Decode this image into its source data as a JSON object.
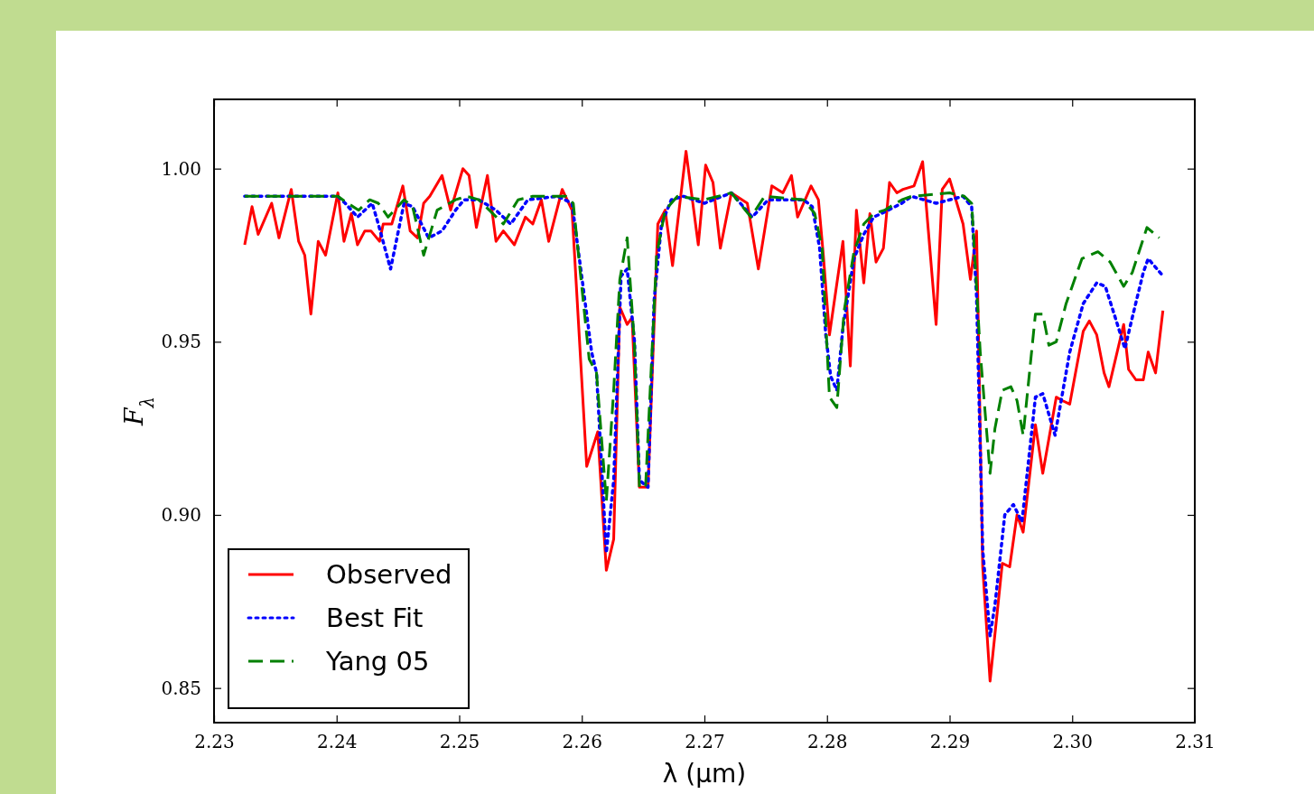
{
  "chart_data": {
    "type": "line",
    "xlabel": "λ (μm)",
    "ylabel": "F$_{λ}$",
    "xlim": [
      2.23,
      2.31
    ],
    "ylim": [
      0.84,
      1.02
    ],
    "xticks": [
      {
        "value": 2.23,
        "label": "2.23"
      },
      {
        "value": 2.24,
        "label": "2.24"
      },
      {
        "value": 2.25,
        "label": "2.25"
      },
      {
        "value": 2.26,
        "label": "2.26"
      },
      {
        "value": 2.27,
        "label": "2.27"
      },
      {
        "value": 2.28,
        "label": "2.28"
      },
      {
        "value": 2.29,
        "label": "2.29"
      },
      {
        "value": 2.3,
        "label": "2.30"
      },
      {
        "value": 2.31,
        "label": "2.31"
      }
    ],
    "yticks": [
      0.85,
      {
        "value": 0.9,
        "label": "0.90"
      },
      0.95,
      {
        "value": 1.0,
        "label": "1.00"
      }
    ],
    "grid": false,
    "legend": "bottom left",
    "marker": "none",
    "series": [
      {
        "name": "Observed",
        "color": "#ff0000",
        "line_style": "solid",
        "x": [
          2.2325,
          2.2331,
          2.2336,
          2.2347,
          2.2353,
          2.2363,
          2.2369,
          2.2374,
          2.2379,
          2.2385,
          2.2391,
          2.2401,
          2.2406,
          2.2412,
          2.2417,
          2.2423,
          2.2428,
          2.2435,
          2.2438,
          2.2445,
          2.2454,
          2.246,
          2.2466,
          2.2471,
          2.2476,
          2.2486,
          2.2493,
          2.2503,
          2.2508,
          2.2514,
          2.2523,
          2.253,
          2.2536,
          2.2545,
          2.2554,
          2.256,
          2.2567,
          2.2573,
          2.2584,
          2.2592,
          2.2604,
          2.2613,
          2.262,
          2.2626,
          2.2631,
          2.2637,
          2.2641,
          2.2647,
          2.2654,
          2.2662,
          2.2668,
          2.2674,
          2.2685,
          2.2695,
          2.2701,
          2.2707,
          2.2713,
          2.2722,
          2.2735,
          2.2744,
          2.2755,
          2.2764,
          2.2771,
          2.2776,
          2.2787,
          2.2793,
          2.2797,
          2.2802,
          2.2813,
          2.2819,
          2.2824,
          2.283,
          2.2835,
          2.284,
          2.2846,
          2.2851,
          2.2857,
          2.2862,
          2.2871,
          2.2878,
          2.2889,
          2.2894,
          2.29,
          2.2911,
          2.2917,
          2.2922,
          2.2927,
          2.2933,
          2.2943,
          2.2949,
          2.2955,
          2.296,
          2.297,
          2.2976,
          2.2987,
          2.2992,
          2.2998,
          2.3009,
          2.3014,
          2.302,
          2.3026,
          2.303,
          2.3042,
          2.3046,
          2.3052,
          2.3058,
          2.3062,
          2.3068,
          2.3074
        ],
        "values": [
          0.978,
          0.989,
          0.981,
          0.99,
          0.98,
          0.994,
          0.979,
          0.975,
          0.958,
          0.979,
          0.975,
          0.993,
          0.979,
          0.987,
          0.978,
          0.982,
          0.982,
          0.979,
          0.984,
          0.984,
          0.995,
          0.982,
          0.98,
          0.99,
          0.992,
          0.998,
          0.988,
          1.0,
          0.998,
          0.983,
          0.998,
          0.979,
          0.982,
          0.978,
          0.986,
          0.984,
          0.991,
          0.979,
          0.994,
          0.988,
          0.914,
          0.924,
          0.884,
          0.893,
          0.96,
          0.955,
          0.957,
          0.908,
          0.908,
          0.984,
          0.988,
          0.972,
          1.005,
          0.978,
          1.001,
          0.996,
          0.977,
          0.993,
          0.99,
          0.971,
          0.995,
          0.993,
          0.998,
          0.986,
          0.995,
          0.991,
          0.975,
          0.952,
          0.979,
          0.943,
          0.988,
          0.967,
          0.987,
          0.973,
          0.977,
          0.996,
          0.993,
          0.994,
          0.995,
          1.002,
          0.955,
          0.994,
          0.997,
          0.984,
          0.968,
          0.982,
          0.885,
          0.852,
          0.886,
          0.885,
          0.9,
          0.895,
          0.926,
          0.912,
          0.934,
          0.933,
          0.932,
          0.953,
          0.956,
          0.952,
          0.941,
          0.937,
          0.955,
          0.942,
          0.939,
          0.939,
          0.947,
          0.941,
          0.959
        ]
      },
      {
        "name": "Best Fit",
        "color": "#0000ff",
        "line_style": "dotted",
        "x": [
          2.2325,
          2.2401,
          2.2407,
          2.2417,
          2.2429,
          2.2434,
          2.2444,
          2.2455,
          2.2462,
          2.2475,
          2.2486,
          2.2497,
          2.2504,
          2.2516,
          2.253,
          2.2542,
          2.2556,
          2.258,
          2.2592,
          2.2601,
          2.2608,
          2.2612,
          2.262,
          2.2626,
          2.2632,
          2.2637,
          2.2643,
          2.2647,
          2.2654,
          2.2659,
          2.2665,
          2.2673,
          2.2683,
          2.27,
          2.2722,
          2.2739,
          2.2752,
          2.2781,
          2.2788,
          2.2794,
          2.2799,
          2.2803,
          2.2808,
          2.2813,
          2.2822,
          2.283,
          2.2838,
          2.285,
          2.2861,
          2.2869,
          2.2889,
          2.2911,
          2.2918,
          2.2922,
          2.2927,
          2.2933,
          2.2937,
          2.2945,
          2.2952,
          2.2959,
          2.297,
          2.2976,
          2.2986,
          2.2998,
          2.3009,
          2.302,
          2.3027,
          2.3036,
          2.3043,
          2.3049,
          2.3058,
          2.3062,
          2.3074
        ],
        "values": [
          0.992,
          0.992,
          0.99,
          0.986,
          0.99,
          0.984,
          0.971,
          0.99,
          0.989,
          0.98,
          0.982,
          0.988,
          0.991,
          0.991,
          0.988,
          0.984,
          0.991,
          0.992,
          0.99,
          0.966,
          0.947,
          0.941,
          0.889,
          0.91,
          0.969,
          0.971,
          0.95,
          0.91,
          0.908,
          0.962,
          0.984,
          0.991,
          0.992,
          0.99,
          0.993,
          0.986,
          0.991,
          0.991,
          0.989,
          0.977,
          0.952,
          0.94,
          0.936,
          0.954,
          0.974,
          0.981,
          0.986,
          0.988,
          0.99,
          0.992,
          0.99,
          0.992,
          0.989,
          0.963,
          0.89,
          0.865,
          0.874,
          0.9,
          0.903,
          0.898,
          0.934,
          0.935,
          0.923,
          0.947,
          0.961,
          0.967,
          0.966,
          0.956,
          0.948,
          0.957,
          0.97,
          0.974,
          0.969
        ]
      },
      {
        "name": "Yang 05",
        "color": "#008000",
        "line_style": "dashed",
        "x": [
          2.2325,
          2.2401,
          2.2409,
          2.2418,
          2.2427,
          2.2434,
          2.2442,
          2.2455,
          2.2462,
          2.2471,
          2.2482,
          2.2497,
          2.2506,
          2.2516,
          2.2536,
          2.2548,
          2.256,
          2.2587,
          2.2593,
          2.2606,
          2.2612,
          2.262,
          2.2626,
          2.2631,
          2.2637,
          2.2643,
          2.2647,
          2.2652,
          2.2661,
          2.2668,
          2.2678,
          2.27,
          2.2722,
          2.2738,
          2.2749,
          2.2781,
          2.279,
          2.2796,
          2.2802,
          2.2808,
          2.2814,
          2.2822,
          2.283,
          2.2838,
          2.2847,
          2.2861,
          2.2869,
          2.29,
          2.2912,
          2.2918,
          2.2925,
          2.2933,
          2.2937,
          2.2943,
          2.295,
          2.2955,
          2.296,
          2.297,
          2.2976,
          2.2981,
          2.2987,
          2.2995,
          2.3008,
          2.3021,
          2.3031,
          2.3042,
          2.3049,
          2.3061,
          2.3071
        ],
        "values": [
          0.992,
          0.992,
          0.99,
          0.988,
          0.991,
          0.99,
          0.986,
          0.991,
          0.989,
          0.975,
          0.988,
          0.991,
          0.992,
          0.991,
          0.984,
          0.991,
          0.992,
          0.992,
          0.99,
          0.945,
          0.941,
          0.904,
          0.936,
          0.968,
          0.98,
          0.949,
          0.908,
          0.908,
          0.975,
          0.988,
          0.992,
          0.991,
          0.993,
          0.986,
          0.992,
          0.991,
          0.987,
          0.977,
          0.934,
          0.931,
          0.959,
          0.976,
          0.984,
          0.987,
          0.988,
          0.991,
          0.992,
          0.993,
          0.992,
          0.99,
          0.947,
          0.912,
          0.925,
          0.936,
          0.937,
          0.933,
          0.923,
          0.958,
          0.958,
          0.949,
          0.95,
          0.961,
          0.974,
          0.976,
          0.973,
          0.966,
          0.97,
          0.983,
          0.98
        ]
      }
    ]
  }
}
